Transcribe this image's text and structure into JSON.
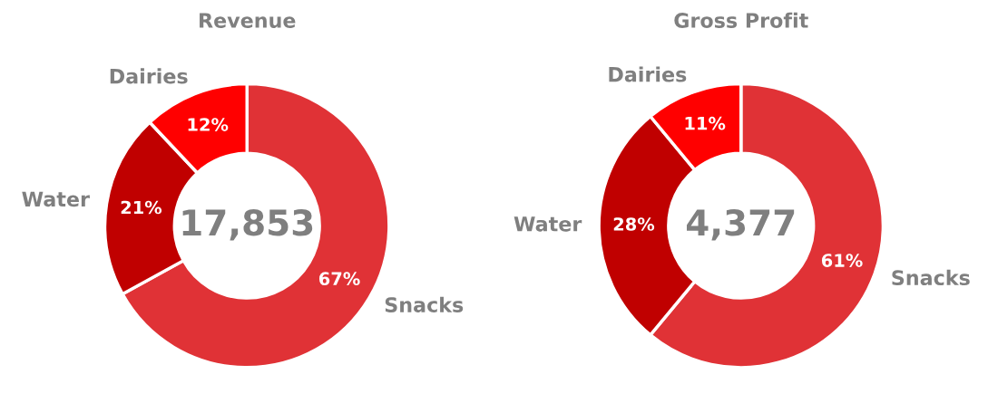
{
  "chart_data": [
    {
      "type": "donut",
      "title": "Revenue",
      "categories": [
        "Snacks",
        "Water",
        "Dairies"
      ],
      "values": [
        67,
        21,
        12
      ],
      "colors": [
        "#e03236",
        "#c00000",
        "#ff0000"
      ],
      "value_labels": [
        "67%",
        "21%",
        "12%"
      ],
      "annotations": [
        "17,853"
      ]
    },
    {
      "type": "donut",
      "title": "Gross Profit",
      "categories": [
        "Snacks",
        "Water",
        "Dairies"
      ],
      "values": [
        61,
        28,
        11
      ],
      "colors": [
        "#e03236",
        "#c00000",
        "#ff0000"
      ],
      "value_labels": [
        "61%",
        "28%",
        "11%"
      ],
      "annotations": [
        "4,377"
      ]
    }
  ]
}
